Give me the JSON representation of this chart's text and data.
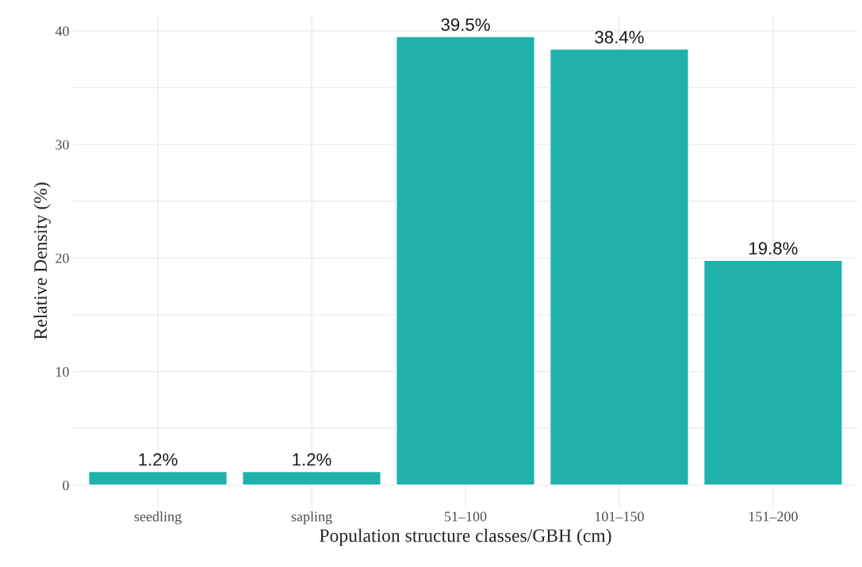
{
  "chart_data": {
    "type": "bar",
    "categories": [
      "seedling",
      "sapling",
      "51–100",
      "101–150",
      "151–200"
    ],
    "values": [
      1.2,
      1.2,
      39.5,
      38.4,
      19.8
    ],
    "value_labels": [
      "1.2%",
      "1.2%",
      "39.5%",
      "38.4%",
      "19.8%"
    ],
    "color": "#20b2aa",
    "xlabel": "Population structure classes/GBH (cm)",
    "ylabel": "Relative Density (%)",
    "ylim": [
      -1.975,
      41.475
    ],
    "yticks": [
      0,
      {
        "value": 5,
        "label": null
      },
      10,
      {
        "value": 15,
        "label": null
      },
      20,
      {
        "value": 25,
        "label": null
      },
      30,
      {
        "value": 35,
        "label": null
      },
      40
    ],
    "grid": true,
    "legend": false
  }
}
